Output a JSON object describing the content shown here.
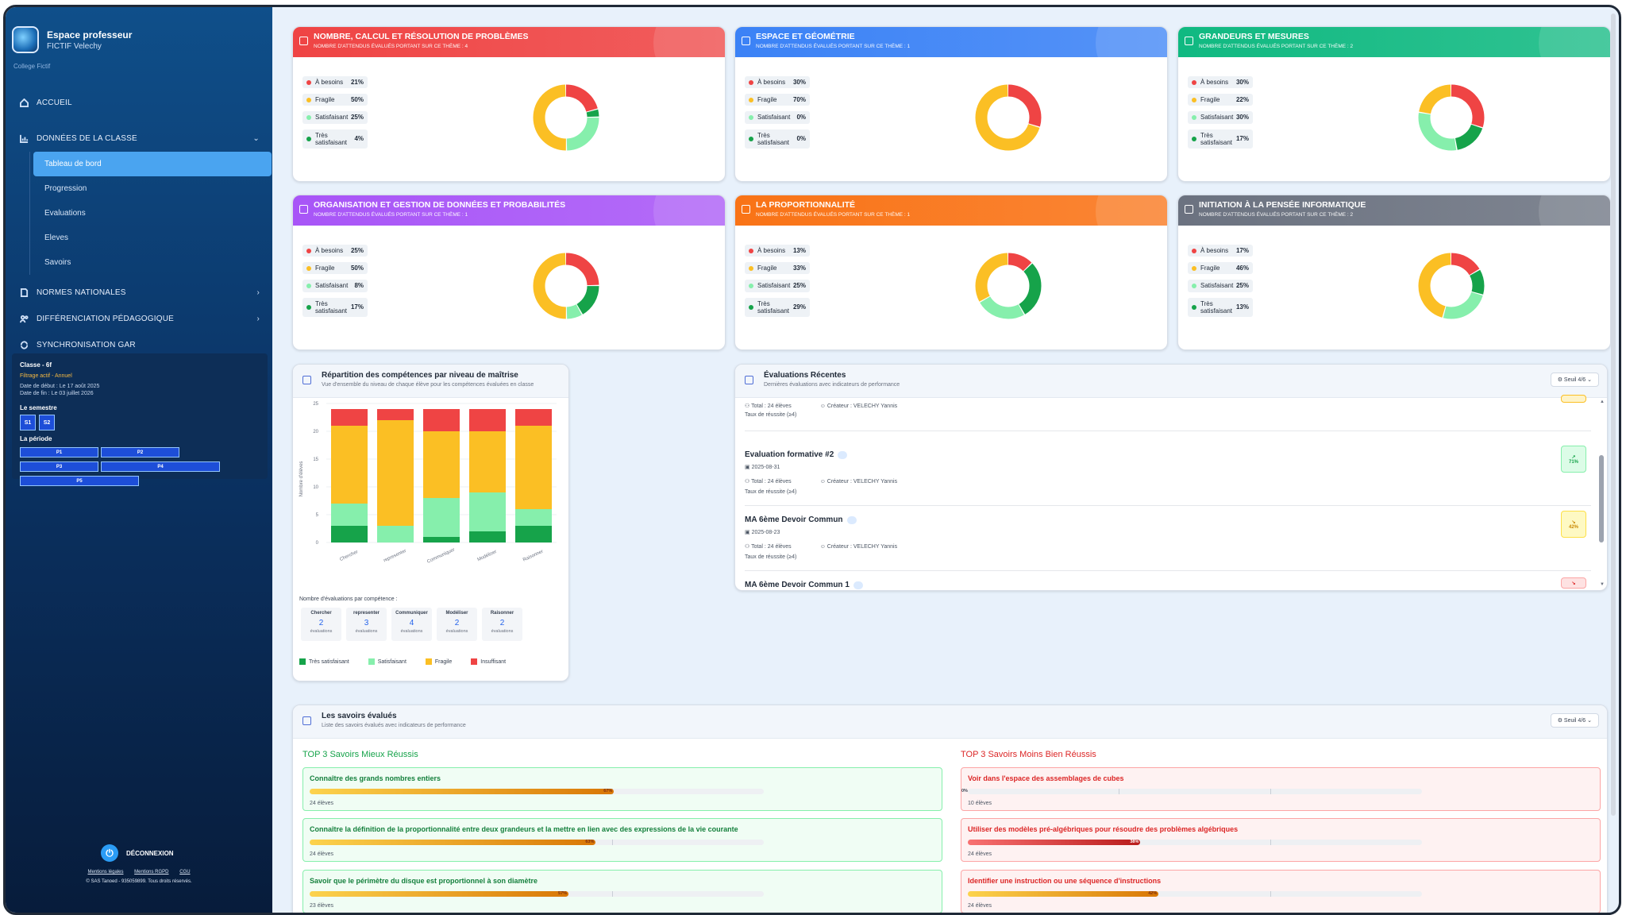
{
  "sidebar": {
    "brand_title": "Espace professeur",
    "brand_user": "FICTIF Velechy",
    "college": "College Fictif",
    "nav": {
      "accueil": "ACCUEIL",
      "donnees": "DONNÉES DE LA CLASSE",
      "sub": [
        "Tableau de bord",
        "Progression",
        "Evaluations",
        "Eleves",
        "Savoirs"
      ],
      "normes": "NORMES NATIONALES",
      "differenciation": "DIFFÉRENCIATION PÉDAGOGIQUE",
      "synchro": "SYNCHRONISATION GAR"
    },
    "classbox": {
      "title": "Classe - 6f",
      "filter": "Filtrage actif - Annuel",
      "start": "Date de début : Le 17 août 2025",
      "end": "Date de fin : Le 03 juillet 2026",
      "semestre_label": "Le semestre",
      "semestres": [
        "S1",
        "S2"
      ],
      "periode_label": "La période",
      "periodes": [
        "P1",
        "P2",
        "P3",
        "P4",
        "P5"
      ]
    },
    "logout": "DÉCONNEXION",
    "links": [
      "Mentions légales",
      "Mentions RGPD",
      "CGU"
    ],
    "copyright": "© SAS Tanoed - 935059899. Tous droits réservés."
  },
  "themes": [
    {
      "name": "NOMBRE, CALCUL ET RÉSOLUTION DE PROBLÈMES",
      "count": "NOMBRE D'ATTENDUS ÉVALUÉS PORTANT SUR CE THÈME : 4",
      "color": "#ef4444",
      "legend": [
        {
          "label": "À besoins",
          "pct": "21%",
          "v": 21
        },
        {
          "label": "Fragile",
          "pct": "50%",
          "v": 50
        },
        {
          "label": "Satisfaisant",
          "pct": "25%",
          "v": 25
        },
        {
          "label": "Très satisfaisant",
          "pct": "4%",
          "v": 4
        }
      ]
    },
    {
      "name": "ESPACE ET GÉOMÉTRIE",
      "count": "NOMBRE D'ATTENDUS ÉVALUÉS PORTANT SUR CE THÈME : 1",
      "color": "#3b82f6",
      "legend": [
        {
          "label": "À besoins",
          "pct": "30%",
          "v": 30
        },
        {
          "label": "Fragile",
          "pct": "70%",
          "v": 70
        },
        {
          "label": "Satisfaisant",
          "pct": "0%",
          "v": 0
        },
        {
          "label": "Très satisfaisant",
          "pct": "0%",
          "v": 0
        }
      ]
    },
    {
      "name": "GRANDEURS ET MESURES",
      "count": "NOMBRE D'ATTENDUS ÉVALUÉS PORTANT SUR CE THÈME : 2",
      "color": "#10b981",
      "legend": [
        {
          "label": "À besoins",
          "pct": "30%",
          "v": 30
        },
        {
          "label": "Fragile",
          "pct": "22%",
          "v": 22
        },
        {
          "label": "Satisfaisant",
          "pct": "30%",
          "v": 30
        },
        {
          "label": "Très satisfaisant",
          "pct": "17%",
          "v": 17
        }
      ]
    },
    {
      "name": "ORGANISATION ET GESTION DE DONNÉES ET PROBABILITÉS",
      "count": "NOMBRE D'ATTENDUS ÉVALUÉS PORTANT SUR CE THÈME : 1",
      "color": "#a855f7",
      "legend": [
        {
          "label": "À besoins",
          "pct": "25%",
          "v": 25
        },
        {
          "label": "Fragile",
          "pct": "50%",
          "v": 50
        },
        {
          "label": "Satisfaisant",
          "pct": "8%",
          "v": 8
        },
        {
          "label": "Très satisfaisant",
          "pct": "17%",
          "v": 17
        }
      ]
    },
    {
      "name": "LA PROPORTIONNALITÉ",
      "count": "NOMBRE D'ATTENDUS ÉVALUÉS PORTANT SUR CE THÈME : 1",
      "color": "#f97316",
      "legend": [
        {
          "label": "À besoins",
          "pct": "13%",
          "v": 13
        },
        {
          "label": "Fragile",
          "pct": "33%",
          "v": 33
        },
        {
          "label": "Satisfaisant",
          "pct": "25%",
          "v": 25
        },
        {
          "label": "Très satisfaisant",
          "pct": "29%",
          "v": 29
        }
      ]
    },
    {
      "name": "INITIATION À LA PENSÉE INFORMATIQUE",
      "count": "NOMBRE D'ATTENDUS ÉVALUÉS PORTANT SUR CE THÈME : 2",
      "color": "#6b7280",
      "legend": [
        {
          "label": "À besoins",
          "pct": "17%",
          "v": 17
        },
        {
          "label": "Fragile",
          "pct": "46%",
          "v": 46
        },
        {
          "label": "Satisfaisant",
          "pct": "25%",
          "v": 25
        },
        {
          "label": "Très satisfaisant",
          "pct": "13%",
          "v": 13
        }
      ]
    }
  ],
  "level_colors": {
    "besoins": "#ef4444",
    "fragile": "#fbbf24",
    "satisfaisant": "#86efac",
    "tres": "#16a34a"
  },
  "repartition": {
    "title": "Répartition des compétences par niveau de maîtrise",
    "subtitle": "Vue d'ensemble du niveau de chaque élève pour les compétences évaluées en classe",
    "count_title": "Nombre d'évaluations par compétence :",
    "counts": [
      {
        "name": "Chercher",
        "n": "2"
      },
      {
        "name": "representer",
        "n": "3"
      },
      {
        "name": "Communiquer",
        "n": "4"
      },
      {
        "name": "Modéliser",
        "n": "2"
      },
      {
        "name": "Raisonner",
        "n": "2"
      }
    ],
    "count_unit": "évaluations",
    "legend": [
      "Très satisfaisant",
      "Satisfaisant",
      "Fragile",
      "Insuffisant"
    ]
  },
  "chart_data": {
    "type": "bar",
    "stacked": true,
    "categories": [
      "Chercher",
      "representer",
      "Communiquer",
      "Modéliser",
      "Raisonner"
    ],
    "ylabel": "Nombre d'élèves",
    "ylim": [
      0,
      25
    ],
    "yticks": [
      "0",
      "5",
      "10",
      "15",
      "20",
      "25"
    ],
    "series": [
      {
        "name": "Très satisfaisant",
        "values": [
          3,
          0,
          1,
          2,
          3
        ]
      },
      {
        "name": "Satisfaisant",
        "values": [
          4,
          3,
          7,
          7,
          3
        ]
      },
      {
        "name": "Fragile",
        "values": [
          14,
          19,
          12,
          11,
          15
        ]
      },
      {
        "name": "Insuffisant",
        "values": [
          3,
          2,
          4,
          4,
          3
        ]
      }
    ]
  },
  "evaluations": {
    "title": "Évaluations Récentes",
    "subtitle": "Dernières évaluations avec indicateurs de performance",
    "seuil": "Seuil 4/6",
    "top_total": "Total : 24 élèves",
    "top_creator": "Créateur : VELECHY Yannis",
    "top_rate": "Taux de réussite (≥4)",
    "items": [
      {
        "title": "Evaluation formative #2",
        "date": "2025-08-31",
        "total": "Total : 24 élèves",
        "creator": "Créateur : VELECHY Yannis",
        "rate": "Taux de réussite (≥4)",
        "pct": "71%"
      },
      {
        "title": "MA 6ème Devoir Commun",
        "date": "2025-08-23",
        "total": "Total : 24 élèves",
        "creator": "Créateur : VELECHY Yannis",
        "rate": "Taux de réussite (≥4)",
        "pct": "42%"
      },
      {
        "title": "MA 6ème Devoir Commun 1",
        "date": "",
        "total": "",
        "creator": "",
        "rate": "",
        "pct": ""
      }
    ]
  },
  "savoirs": {
    "title": "Les savoirs évalués",
    "subtitle": "Liste des savoirs évalués avec indicateurs de performance",
    "seuil": "Seuil 4/6",
    "best_title": "TOP 3 Savoirs Mieux Réussis",
    "worst_title": "TOP 3 Savoirs Moins Bien Réussis",
    "best": [
      {
        "title": "Connaître des grands nombres entiers",
        "pct": "67%",
        "v": 67,
        "count": "24 élèves"
      },
      {
        "title": "Connaître la définition de la proportionnalité entre deux grandeurs et la mettre en lien avec des expressions de la vie courante",
        "pct": "63%",
        "v": 63,
        "count": "24 élèves"
      },
      {
        "title": "Savoir que le périmètre du disque est proportionnel à son diamètre",
        "pct": "57%",
        "v": 57,
        "count": "23 élèves"
      }
    ],
    "worst": [
      {
        "title": "Voir dans l'espace des assemblages de cubes",
        "pct": "0%",
        "v": 0,
        "count": "10 élèves"
      },
      {
        "title": "Utiliser des modèles pré-algébriques pour résoudre des problèmes algébriques",
        "pct": "38%",
        "v": 38,
        "count": "24 élèves"
      },
      {
        "title": "Identifier une instruction ou une séquence d'instructions",
        "pct": "42%",
        "v": 42,
        "count": "24 élèves"
      }
    ]
  }
}
